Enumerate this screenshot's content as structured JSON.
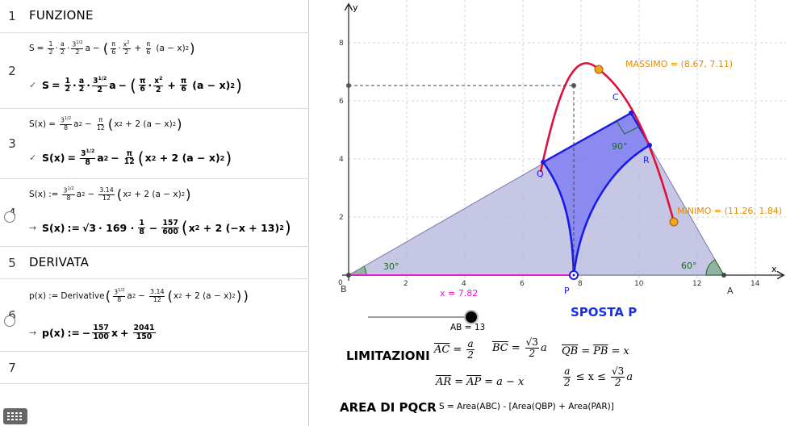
{
  "cas": {
    "rows": [
      {
        "num": "1",
        "text": "FUNZIONE"
      },
      {
        "num": "2",
        "input": {
          "s": "S",
          "eq": "=",
          "f1n": "1",
          "f1d": "2",
          "f2n": "a",
          "f2d": "2",
          "f3n": "3",
          "f3e": "1/2",
          "f3d": "2",
          "a": "a",
          "minus": "−",
          "g1n": "π",
          "g1d": "6",
          "g2n": "x",
          "g2e": "2",
          "g2d": "2",
          "plus": "+",
          "g3n": "π",
          "g3d": "6",
          "tail": "(a − x)",
          "tailexp": "2"
        },
        "check": "✓",
        "output": {
          "s": "S",
          "eq": "=",
          "f1n": "1",
          "f1d": "2",
          "f2n": "a",
          "f2d": "2",
          "f3n": "3",
          "f3e": "1/2",
          "f3d": "2",
          "a": "a",
          "minus": "−",
          "g1n": "π",
          "g1d": "6",
          "g2n": "x",
          "g2e": "2",
          "g2d": "2",
          "plus": "+",
          "g3n": "π",
          "g3d": "6",
          "tail": "(a − x)",
          "tailexp": "2"
        }
      },
      {
        "num": "3",
        "input": {
          "lhs": "S(x)",
          "eq": "=",
          "f1n": "3",
          "f1e": "1/2",
          "f1d": "8",
          "a2": "a",
          "a2e": "2",
          "minus": "−",
          "f2n": "π",
          "f2d": "12",
          "body": "x",
          "bodye": "2",
          "body2": " + 2 (a − x)",
          "body2e": "2"
        },
        "check": "✓",
        "output": {
          "lhs": "S(x)",
          "eq": "=",
          "f1n": "3",
          "f1e": "1/2",
          "f1d": "8",
          "a2": "a",
          "a2e": "2",
          "minus": "−",
          "f2n": "π",
          "f2d": "12",
          "body": "x",
          "bodye": "2",
          "body2": " + 2 (a − x)",
          "body2e": "2"
        }
      },
      {
        "num": "4",
        "input": {
          "lhs": "S(x)",
          "eq": ":=",
          "f1n": "3",
          "f1e": "1/2",
          "f1d": "8",
          "a2": "a",
          "a2e": "2",
          "minus": "−",
          "f2n": "3.14",
          "f2d": "12",
          "body": "x",
          "bodye": "2",
          "body2": " + 2 (a − x)",
          "body2e": "2"
        },
        "arrow": "→",
        "output": {
          "lhs": "S(x)",
          "eq": ":=",
          "rad": "√3",
          "mid": "· 169 ·",
          "f1n": "1",
          "f1d": "8",
          "minus": "−",
          "f2n": "157",
          "f2d": "600",
          "body": "x",
          "bodye": "2",
          "body2": " + 2 (−x + 13)",
          "body2e": "2"
        }
      },
      {
        "num": "5",
        "text": "DERIVATA"
      },
      {
        "num": "6",
        "input": {
          "lhs": "p(x)",
          "eq": ":=",
          "fn": "Derivative",
          "f1n": "3",
          "f1e": "1/2",
          "f1d": "8",
          "a2": "a",
          "a2e": "2",
          "minus": "−",
          "f2n": "3.14",
          "f2d": "12",
          "body": "x",
          "bodye": "2",
          "body2": " + 2 (a − x)",
          "body2e": "2"
        },
        "arrow": "→",
        "output": {
          "lhs": "p(x)",
          "eq": ":=",
          "neg": "−",
          "f1n": "157",
          "f1d": "100",
          "x": "x",
          "plus": "+",
          "f2n": "2041",
          "f2d": "150"
        }
      },
      {
        "num": "7",
        "text": ""
      }
    ]
  },
  "graphics": {
    "axis_x_label": "x",
    "axis_y_label": "y",
    "x_ticks": [
      "2",
      "4",
      "6",
      "8",
      "10",
      "12",
      "14"
    ],
    "y_ticks": [
      "2",
      "4",
      "6",
      "8"
    ],
    "origin_label": "0",
    "points": {
      "B": "B",
      "A": "A",
      "C": "C",
      "P": "P",
      "Q": "Q",
      "R": "R"
    },
    "angles": {
      "B": "30°",
      "A": "60°",
      "C": "90°"
    },
    "massimo": "MASSIMO = (8.67, 7.11)",
    "minimo": "MINIMO = (11.26, 1.84)",
    "x_value": "x = 7.82",
    "slider_label": "AB = 13",
    "sposta": "SPOSTA P",
    "limitazioni_title": "LIMITAZIONI",
    "area_title": "AREA DI PQCR",
    "area_formula": "S = Area(ABC) - [Area(QBP) + Area(PAR)]",
    "lim": {
      "ac": "AC",
      "a_half_n": "a",
      "a_half_d": "2",
      "bc": "BC",
      "r3": "√3",
      "two": "2",
      "a": "a",
      "qb": "QB",
      "pb": "PB",
      "x": "x",
      "ar": "AR",
      "ap": "AP",
      "amx": "a − x",
      "le1": "≤ x ≤"
    },
    "colors": {
      "triangle": "#b3b3dc",
      "quad": "#7b7bf2",
      "blue": "#1a1ae6",
      "red": "#e0103a",
      "orange": "#f2a51a",
      "magenta": "#e81ec9",
      "green": "#1c6b1c",
      "max_label": "#e68a00"
    }
  }
}
